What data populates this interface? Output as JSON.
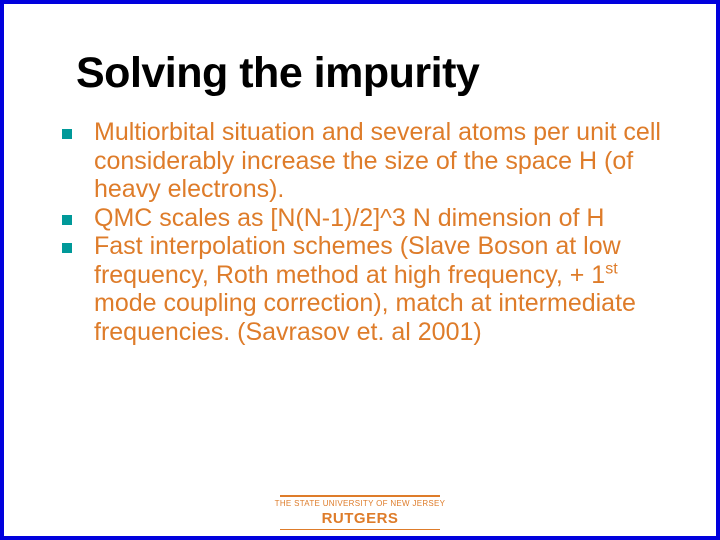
{
  "title": "Solving the impurity",
  "bullets": [
    "Multiorbital situation and several atoms per unit cell considerably increase the size of the space H (of heavy electrons).",
    "QMC scales as  [N(N-1)/2]^3 N dimension of H",
    "Fast interpolation schemes (Slave Boson at low frequency,  Roth method at high frequency, + 1<sup>st</sup> mode coupling correction), match at intermediate frequencies. (Savrasov et. al 2001)"
  ],
  "footer": {
    "sub": "THE STATE UNIVERSITY OF NEW JERSEY",
    "main": "RUTGERS"
  },
  "colors": {
    "border": "#0000dd",
    "bullet_box": "#009999",
    "text": "#de7c2a",
    "title": "#000000",
    "background": "#ffffff"
  },
  "typography": {
    "title_fontsize": 43,
    "body_fontsize": 25,
    "footer_sub_fontsize": 8,
    "footer_main_fontsize": 15,
    "font_family": "Arial"
  }
}
